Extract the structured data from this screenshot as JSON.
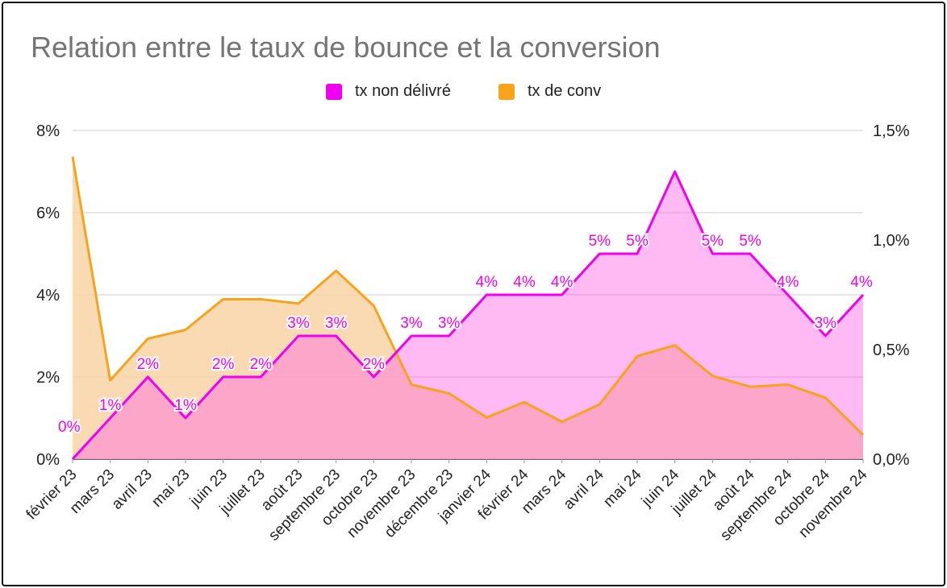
{
  "chart_data": {
    "type": "area",
    "title": "Relation entre le taux de bounce et la conversion",
    "legend_position": "top",
    "grid": true,
    "categories": [
      "février 23",
      "mars 23",
      "avril 23",
      "mai 23",
      "juin 23",
      "juillet 23",
      "août 23",
      "septembre 23",
      "octobre 23",
      "novembre 23",
      "décembre 23",
      "janvier 24",
      "février 24",
      "mars 24",
      "avril 24",
      "mai 24",
      "juin 24",
      "juillet 24",
      "août 24",
      "septembre 24",
      "octobre 24",
      "novembre 24"
    ],
    "left_axis": {
      "ylim": [
        0,
        8
      ],
      "ticks": [
        "0%",
        "2%",
        "4%",
        "6%",
        "8%"
      ],
      "tick_values": [
        0,
        2,
        4,
        6,
        8
      ]
    },
    "right_axis": {
      "ylim": [
        0,
        1.5
      ],
      "ticks": [
        "0,0%",
        "0,5%",
        "1,0%",
        "1,5%"
      ],
      "tick_values": [
        0,
        0.5,
        1.0,
        1.5
      ]
    },
    "series": [
      {
        "name": "tx non délivré",
        "axis": "left",
        "color": "#f000f0",
        "fill": "#ffb3ff",
        "values": [
          0,
          1,
          2,
          1,
          2,
          2,
          3,
          3,
          2,
          3,
          3,
          4,
          4,
          4,
          5,
          5,
          7,
          5,
          5,
          4,
          3,
          4
        ],
        "data_labels": [
          "0%",
          "1%",
          "2%",
          "1%",
          "2%",
          "2%",
          "3%",
          "3%",
          "2%",
          "3%",
          "3%",
          "4%",
          "4%",
          "4%",
          "5%",
          "5%",
          "",
          "5%",
          "5%",
          "4%",
          "3%",
          "4%"
        ]
      },
      {
        "name": "tx de conv",
        "axis": "right",
        "color": "#f7a31c",
        "fill": "#f9d4a6",
        "values": [
          1.38,
          0.36,
          0.55,
          0.59,
          0.73,
          0.73,
          0.71,
          0.86,
          0.7,
          0.34,
          0.3,
          0.19,
          0.26,
          0.17,
          0.25,
          0.47,
          0.52,
          0.38,
          0.33,
          0.34,
          0.28,
          0.11
        ]
      }
    ]
  }
}
